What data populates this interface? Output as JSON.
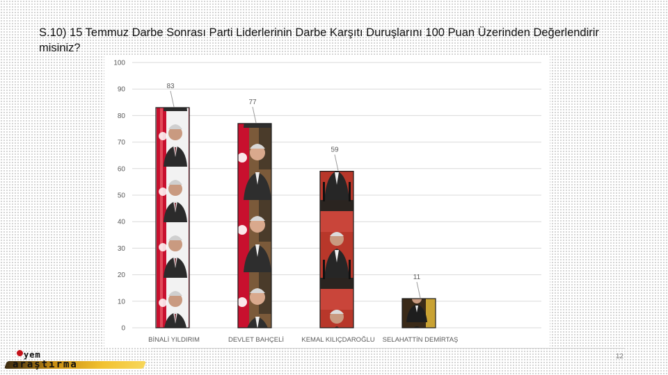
{
  "title": "S.10) 15 Temmuz Darbe Sonrası Parti Liderlerinin Darbe Karşıtı Duruşlarını 100 Puan Üzerinden Değerlendirir misiniz?",
  "page_number": "12",
  "logo": {
    "line1": "yem",
    "line2": "araştırma"
  },
  "chart_data": {
    "type": "bar",
    "categories": [
      "BİNALİ YILDIRIM",
      "DEVLET BAHÇELİ",
      "KEMAL KILIÇDAROĞLU",
      "SELAHATTİN DEMİRTAŞ"
    ],
    "values": [
      83,
      77,
      59,
      11
    ],
    "ylim": [
      0,
      100
    ],
    "yticks": [
      0,
      10,
      20,
      30,
      40,
      50,
      60,
      70,
      80,
      90,
      100
    ],
    "grid": true,
    "legend": "none",
    "xlabel": "",
    "ylabel": "",
    "bar_fill": "portrait-pictogram"
  },
  "colors": {
    "grid": "#d9d9d9",
    "bar_border": "#1a1a1a",
    "label": "#595959",
    "flag_red": "#c8102e",
    "suit": "#2b2b2b",
    "skin": "#c99a80",
    "background_red": "#b8372a",
    "background_dark": "#3a2a18"
  }
}
